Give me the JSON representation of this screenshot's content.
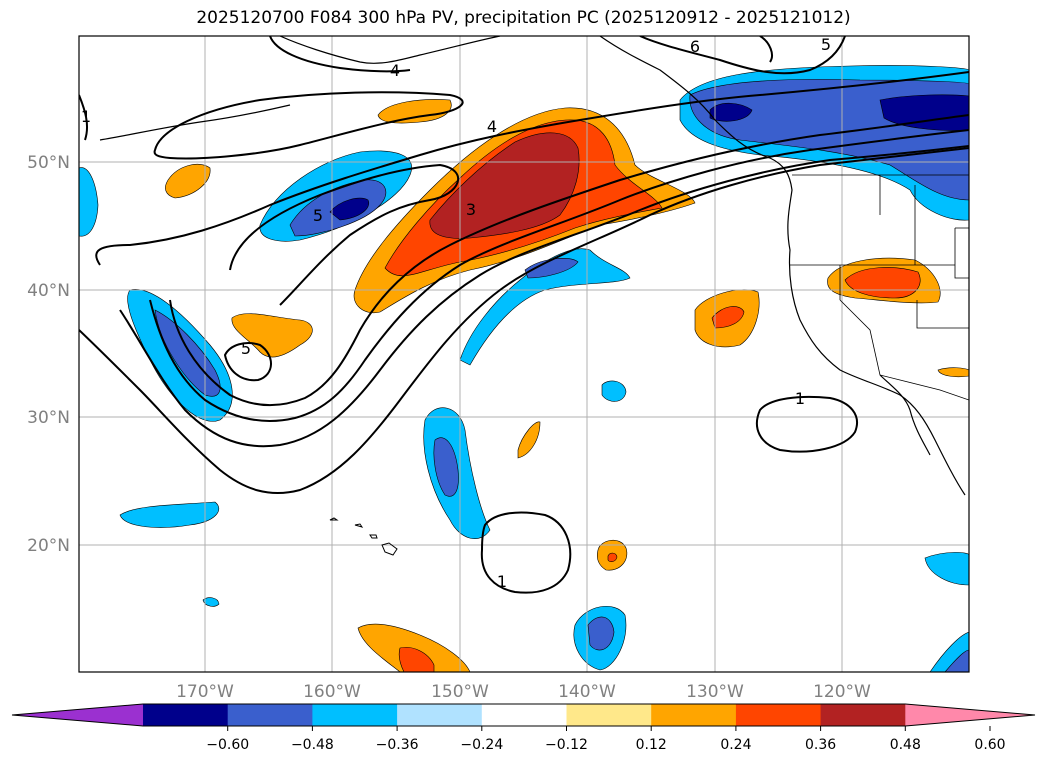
{
  "title": "2025120700 F084 300 hPa PV, precipitation PC (2025120912 - 2025121012)",
  "map": {
    "lon_labels": [
      "170°W",
      "160°W",
      "150°W",
      "140°W",
      "130°W",
      "120°W"
    ],
    "lat_labels": [
      "50°N",
      "40°N",
      "30°N",
      "20°N"
    ],
    "contour_labels": [
      "4",
      "5",
      "3",
      "5",
      "1",
      "1",
      "6",
      "5",
      "4",
      "1"
    ]
  },
  "colorbar": {
    "ticks": [
      "−0.60",
      "−0.48",
      "−0.36",
      "−0.24",
      "−0.12",
      "0.12",
      "0.24",
      "0.36",
      "0.48",
      "0.60"
    ],
    "colors": [
      "#9b30d0",
      "#00008b",
      "#3a5fcd",
      "#00bfff",
      "#b0e2ff",
      "#ffffff",
      "#ffe88a",
      "#ffa500",
      "#ff4500",
      "#b22222",
      "#ff88aa"
    ]
  }
}
